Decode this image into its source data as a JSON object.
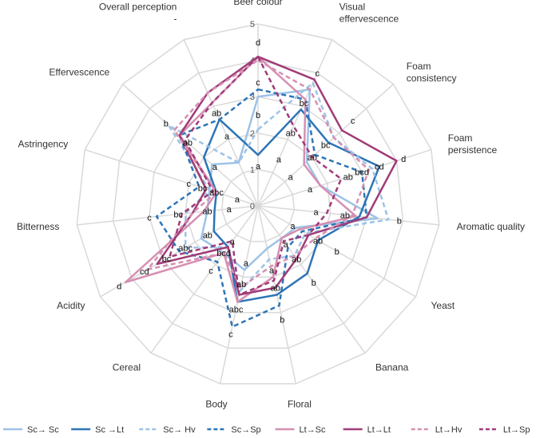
{
  "chart_data": {
    "type": "radar",
    "axes": [
      "Beer colour",
      "Visual effervescence",
      "Foam consistency",
      "Foam persistence",
      "Aromatic quality",
      "Yeast",
      "Banana",
      "Floral",
      "Body",
      "Cereal",
      "Acidity",
      "Bitterness",
      "Astringency",
      "Effervescence",
      "Overall perception"
    ],
    "axis_label_lines": [
      [
        "Beer colour"
      ],
      [
        "Visual",
        "effervescence"
      ],
      [
        "Foam",
        "consistency"
      ],
      [
        "Foam",
        "persistence"
      ],
      [
        "Aromatic quality"
      ],
      [
        "Yeast"
      ],
      [
        "Banana"
      ],
      [
        "Floral"
      ],
      [
        "Body"
      ],
      [
        "Cereal"
      ],
      [
        "Acidity"
      ],
      [
        "Bitterness"
      ],
      [
        "Astringency"
      ],
      [
        "Effervescence"
      ],
      [
        "Overall perception",
        "-"
      ]
    ],
    "rlim": [
      0,
      5
    ],
    "ticks": [
      "0",
      "1",
      "2",
      "3",
      "4",
      "5"
    ],
    "grid": true,
    "legend_position": "bottom",
    "series": [
      {
        "name": "Sc→ Sc",
        "color": "#9dc3e6",
        "dash": "solid",
        "values": [
          3.0,
          3.5,
          1.8,
          1.8,
          3.3,
          1.2,
          1.1,
          1.2,
          1.8,
          1.6,
          1.8,
          1.4,
          1.4,
          1.7,
          1.3
        ]
      },
      {
        "name": "Sc →Lt",
        "color": "#2e75b6",
        "dash": "solid",
        "values": [
          1.4,
          2.9,
          2.6,
          3.5,
          2.8,
          1.9,
          2.3,
          2.5,
          2.7,
          1.4,
          1.4,
          1.2,
          1.2,
          2.0,
          2.6
        ]
      },
      {
        "name": "Sc→ Hv",
        "color": "#9dc3e6",
        "dash": "dashed",
        "values": [
          2.1,
          3.7,
          2.8,
          3.3,
          3.6,
          1.5,
          1.7,
          1.5,
          2.4,
          1.4,
          2.3,
          2.0,
          1.4,
          3.3,
          1.3
        ]
      },
      {
        "name": "Sc→Sp",
        "color": "#2e75b6",
        "dash": "dashed",
        "values": [
          3.2,
          3.2,
          2.1,
          3.0,
          3.0,
          1.4,
          1.4,
          2.8,
          3.4,
          1.9,
          2.5,
          2.8,
          1.7,
          2.9,
          2.6
        ]
      },
      {
        "name": "Lt→Sc",
        "color": "#d68fb2",
        "dash": "solid",
        "values": [
          4.1,
          3.2,
          1.7,
          1.8,
          2.7,
          1.3,
          1.1,
          2.0,
          2.7,
          1.6,
          4.2,
          1.5,
          1.2,
          2.9,
          3.1
        ]
      },
      {
        "name": "Lt→Lt",
        "color": "#a03c78",
        "dash": "solid",
        "values": [
          4.1,
          3.8,
          3.1,
          4.0,
          3.0,
          1.6,
          1.8,
          2.3,
          2.5,
          1.4,
          3.2,
          1.8,
          1.5,
          2.9,
          3.4
        ]
      },
      {
        "name": "Lt→Hv",
        "color": "#d68fb2",
        "dash": "dashed",
        "values": [
          4.0,
          3.5,
          2.8,
          3.2,
          2.6,
          1.8,
          1.7,
          1.7,
          2.3,
          1.6,
          3.5,
          1.8,
          1.2,
          3.1,
          3.4
        ]
      },
      {
        "name": "Lt→Sp",
        "color": "#a03c78",
        "dash": "dashed",
        "values": [
          4.1,
          2.4,
          2.0,
          2.4,
          1.9,
          1.6,
          1.2,
          2.1,
          2.5,
          1.2,
          2.8,
          2.1,
          1.3,
          2.7,
          3.1
        ]
      }
    ],
    "annotations": [
      {
        "axis": 0,
        "value": 4.5,
        "text": "d"
      },
      {
        "axis": 0,
        "value": 3.4,
        "text": "c"
      },
      {
        "axis": 0,
        "value": 2.5,
        "text": "b"
      },
      {
        "axis": 0,
        "value": 1.1,
        "text": "a"
      },
      {
        "axis": 1,
        "value": 4.0,
        "text": "c"
      },
      {
        "axis": 1,
        "value": 3.1,
        "text": "bc"
      },
      {
        "axis": 1,
        "value": 2.2,
        "text": "ab"
      },
      {
        "axis": 1,
        "value": 1.4,
        "text": "a"
      },
      {
        "axis": 2,
        "value": 3.5,
        "text": "c"
      },
      {
        "axis": 2,
        "value": 2.5,
        "text": "bc"
      },
      {
        "axis": 2,
        "value": 2.0,
        "text": "ab"
      },
      {
        "axis": 2,
        "value": 1.2,
        "text": "a"
      },
      {
        "axis": 3,
        "value": 4.2,
        "text": "d"
      },
      {
        "axis": 3,
        "value": 3.5,
        "text": "cd"
      },
      {
        "axis": 3,
        "value": 3.0,
        "text": "bcd"
      },
      {
        "axis": 3,
        "value": 2.6,
        "text": "ab"
      },
      {
        "axis": 3,
        "value": 1.5,
        "text": "a"
      },
      {
        "axis": 4,
        "value": 3.9,
        "text": "b"
      },
      {
        "axis": 4,
        "value": 2.4,
        "text": "ab"
      },
      {
        "axis": 4,
        "value": 1.6,
        "text": "a"
      },
      {
        "axis": 5,
        "value": 2.5,
        "text": "b"
      },
      {
        "axis": 5,
        "value": 1.9,
        "text": "ab"
      },
      {
        "axis": 5,
        "value": 1.1,
        "text": "a"
      },
      {
        "axis": 6,
        "value": 2.6,
        "text": "b"
      },
      {
        "axis": 6,
        "value": 1.8,
        "text": "ab"
      },
      {
        "axis": 6,
        "value": 1.3,
        "text": "a"
      },
      {
        "axis": 7,
        "value": 3.2,
        "text": "b"
      },
      {
        "axis": 7,
        "value": 2.3,
        "text": "ab"
      },
      {
        "axis": 7,
        "value": 1.8,
        "text": "a"
      },
      {
        "axis": 8,
        "value": 3.6,
        "text": "c"
      },
      {
        "axis": 8,
        "value": 2.9,
        "text": "abc"
      },
      {
        "axis": 8,
        "value": 2.2,
        "text": "ab"
      },
      {
        "axis": 8,
        "value": 1.6,
        "text": "a"
      },
      {
        "axis": 9,
        "value": 2.2,
        "text": "c"
      },
      {
        "axis": 9,
        "value": 1.6,
        "text": "bcd"
      },
      {
        "axis": 9,
        "value": 1.2,
        "text": "a"
      },
      {
        "axis": 10,
        "value": 4.4,
        "text": "d"
      },
      {
        "axis": 10,
        "value": 3.6,
        "text": "cd"
      },
      {
        "axis": 10,
        "value": 2.9,
        "text": "bc"
      },
      {
        "axis": 10,
        "value": 2.3,
        "text": "abc"
      },
      {
        "axis": 10,
        "value": 1.6,
        "text": "ab"
      },
      {
        "axis": 11,
        "value": 3.0,
        "text": "c"
      },
      {
        "axis": 11,
        "value": 2.2,
        "text": "bc"
      },
      {
        "axis": 11,
        "value": 1.4,
        "text": "ab"
      },
      {
        "axis": 11,
        "value": 0.8,
        "text": "a"
      },
      {
        "axis": 12,
        "value": 2.0,
        "text": "c"
      },
      {
        "axis": 12,
        "value": 1.6,
        "text": "bc"
      },
      {
        "axis": 12,
        "value": 1.2,
        "text": "abc"
      },
      {
        "axis": 12,
        "value": 0.6,
        "text": "a"
      },
      {
        "axis": 13,
        "value": 3.4,
        "text": "b"
      },
      {
        "axis": 13,
        "value": 2.6,
        "text": "ab"
      },
      {
        "axis": 13,
        "value": 1.6,
        "text": "a"
      },
      {
        "axis": 14,
        "value": 2.8,
        "text": "ab"
      },
      {
        "axis": 14,
        "value": 2.1,
        "text": "a"
      }
    ]
  }
}
